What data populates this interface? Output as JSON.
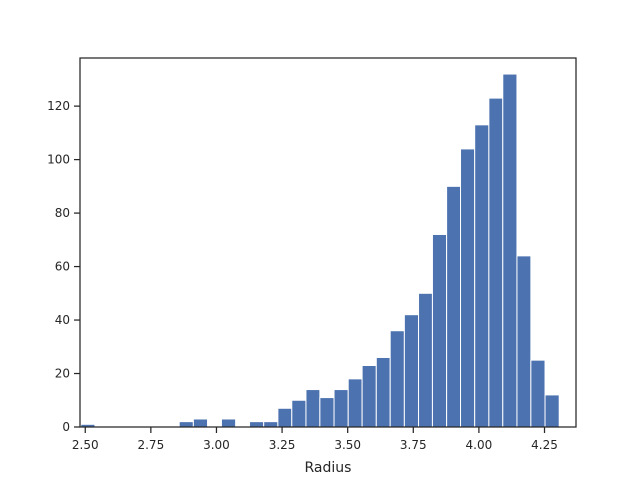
{
  "chart_data": {
    "type": "bar",
    "title": "",
    "xlabel": "Radius",
    "ylabel": "",
    "xlim": [
      2.48,
      4.37
    ],
    "ylim": [
      0,
      138
    ],
    "xticks": [
      2.5,
      2.75,
      3.0,
      3.25,
      3.5,
      3.75,
      4.0,
      4.25
    ],
    "xtick_labels": [
      "2.50",
      "2.75",
      "3.00",
      "3.25",
      "3.50",
      "3.75",
      "4.00",
      "4.25"
    ],
    "yticks": [
      0,
      20,
      40,
      60,
      80,
      100,
      120
    ],
    "ytick_labels": [
      "0",
      "20",
      "40",
      "60",
      "80",
      "100",
      "120"
    ],
    "bar_color": "#4c72b0",
    "grid": false,
    "bins": [
      {
        "x0": 2.483,
        "x1": 2.537,
        "count": 1
      },
      {
        "x0": 2.537,
        "x1": 2.59,
        "count": 0
      },
      {
        "x0": 2.59,
        "x1": 2.644,
        "count": 0
      },
      {
        "x0": 2.644,
        "x1": 2.698,
        "count": 0
      },
      {
        "x0": 2.698,
        "x1": 2.751,
        "count": 0
      },
      {
        "x0": 2.751,
        "x1": 2.805,
        "count": 0
      },
      {
        "x0": 2.805,
        "x1": 2.858,
        "count": 0
      },
      {
        "x0": 2.858,
        "x1": 2.912,
        "count": 2
      },
      {
        "x0": 2.912,
        "x1": 2.966,
        "count": 3
      },
      {
        "x0": 2.966,
        "x1": 3.019,
        "count": 0
      },
      {
        "x0": 3.019,
        "x1": 3.073,
        "count": 3
      },
      {
        "x0": 3.073,
        "x1": 3.126,
        "count": 0
      },
      {
        "x0": 3.126,
        "x1": 3.18,
        "count": 2
      },
      {
        "x0": 3.18,
        "x1": 3.234,
        "count": 2
      },
      {
        "x0": 3.234,
        "x1": 3.287,
        "count": 7
      },
      {
        "x0": 3.287,
        "x1": 3.341,
        "count": 10
      },
      {
        "x0": 3.341,
        "x1": 3.394,
        "count": 14
      },
      {
        "x0": 3.394,
        "x1": 3.448,
        "count": 11
      },
      {
        "x0": 3.448,
        "x1": 3.502,
        "count": 14
      },
      {
        "x0": 3.502,
        "x1": 3.555,
        "count": 18
      },
      {
        "x0": 3.555,
        "x1": 3.609,
        "count": 23
      },
      {
        "x0": 3.609,
        "x1": 3.662,
        "count": 26
      },
      {
        "x0": 3.662,
        "x1": 3.716,
        "count": 36
      },
      {
        "x0": 3.716,
        "x1": 3.77,
        "count": 42
      },
      {
        "x0": 3.77,
        "x1": 3.823,
        "count": 50
      },
      {
        "x0": 3.823,
        "x1": 3.877,
        "count": 72
      },
      {
        "x0": 3.877,
        "x1": 3.93,
        "count": 90
      },
      {
        "x0": 3.93,
        "x1": 3.984,
        "count": 104
      },
      {
        "x0": 3.984,
        "x1": 4.038,
        "count": 113
      },
      {
        "x0": 4.038,
        "x1": 4.091,
        "count": 123
      },
      {
        "x0": 4.091,
        "x1": 4.145,
        "count": 132
      },
      {
        "x0": 4.145,
        "x1": 4.198,
        "count": 64
      },
      {
        "x0": 4.198,
        "x1": 4.252,
        "count": 25
      },
      {
        "x0": 4.252,
        "x1": 4.306,
        "count": 12
      }
    ]
  }
}
